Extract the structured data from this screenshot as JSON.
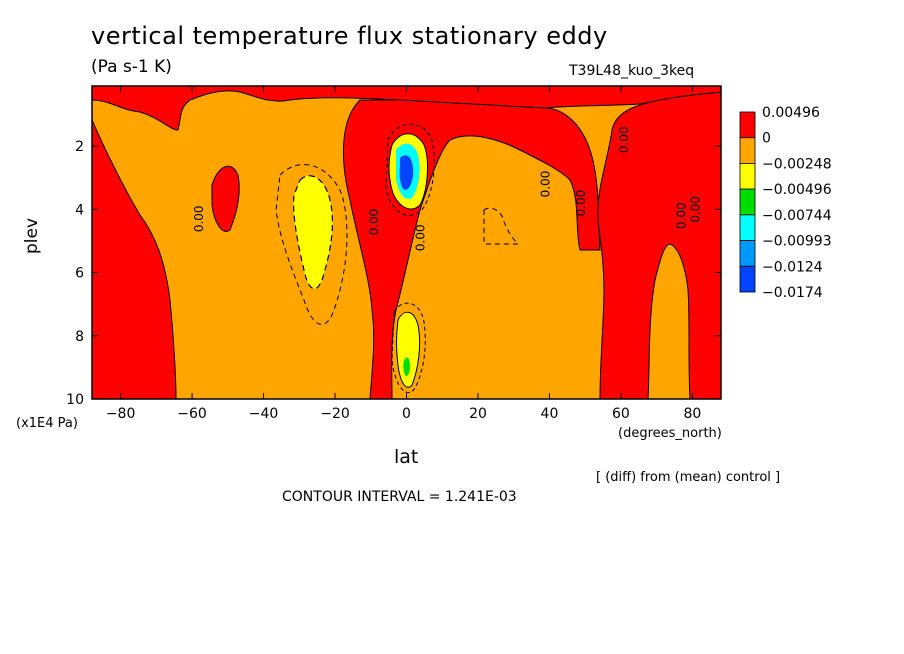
{
  "header": {
    "title": "vertical temperature flux stationary eddy",
    "units": "(Pa s-1 K)",
    "run_id": "T39L48_kuo_3keq"
  },
  "footer": {
    "note": "[ (diff) from (mean) control ]",
    "contour_interval": "CONTOUR INTERVAL = 1.241E-03"
  },
  "chart_data": {
    "type": "heatmap",
    "title": "vertical temperature flux stationary eddy",
    "xlabel": "lat",
    "xunit": "(degrees_north)",
    "ylabel": "plev",
    "yunit": "(x1E4 Pa)",
    "xlim": [
      -88,
      88
    ],
    "ylim": [
      10,
      0.1
    ],
    "x_ticks": [
      -80,
      -60,
      -40,
      -20,
      0,
      20,
      40,
      60,
      80
    ],
    "y_ticks": [
      2,
      4,
      6,
      8,
      10
    ],
    "legend": {
      "placement": "right",
      "levels": [
        "0.00496",
        "0",
        "-0.00248",
        "-0.00496",
        "-0.00744",
        "-0.00993",
        "-0.0124",
        "-0.0174"
      ],
      "colors": [
        "#ff0000",
        "#ffa500",
        "#ffff00",
        "#00dd00",
        "#00ffff",
        "#0099ff",
        "#0044ff"
      ]
    },
    "contour_labels": [
      {
        "text": "0.00",
        "x": -57,
        "y": 4.3
      },
      {
        "text": "0.00",
        "x": -8,
        "y": 4.4
      },
      {
        "text": "0.00",
        "x": 5,
        "y": 4.9
      },
      {
        "text": "0.00",
        "x": 40,
        "y": 3.2
      },
      {
        "text": "0.00",
        "x": 50,
        "y": 3.8
      },
      {
        "text": "0.00",
        "x": 62,
        "y": 1.8
      },
      {
        "text": "0.00",
        "x": 78,
        "y": 4.2
      },
      {
        "text": "0.00",
        "x": 82,
        "y": 4.0
      }
    ],
    "features": [
      {
        "description_level": "-0.00496",
        "x_range": [
          -36,
          -24
        ],
        "y_range": [
          3.2,
          6.3
        ]
      },
      {
        "description_level": "-0.0174",
        "x_range": [
          -3,
          4
        ],
        "y_range": [
          2.1,
          3.5
        ]
      },
      {
        "description_level": "-0.00744",
        "x_range": [
          -2,
          3
        ],
        "y_range": [
          7.5,
          9.3
        ]
      }
    ]
  }
}
